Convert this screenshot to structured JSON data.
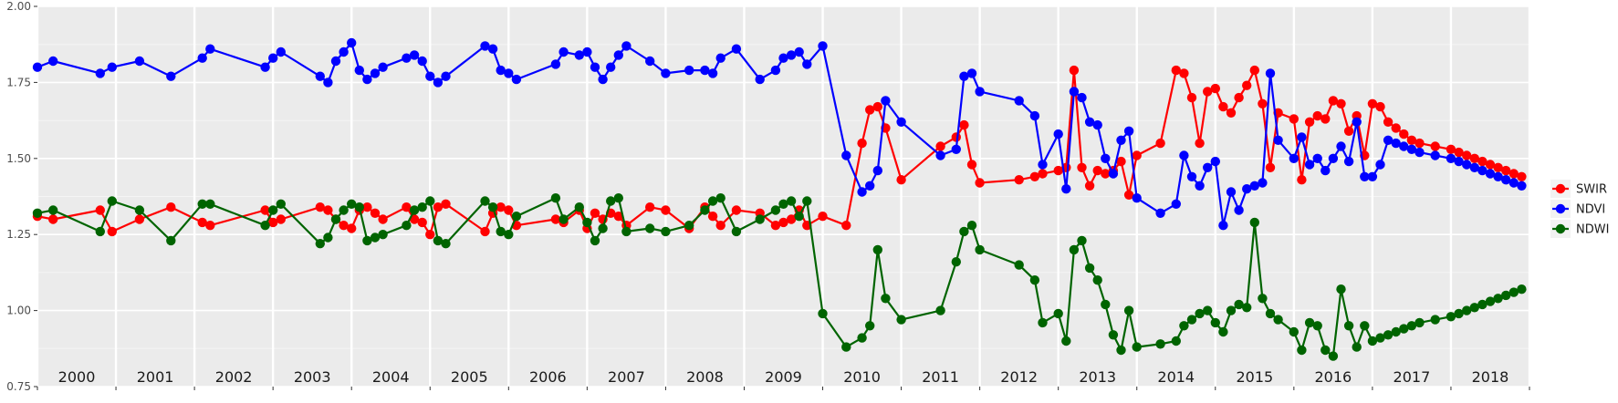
{
  "chart_data": {
    "type": "line",
    "title": "",
    "xlabel": "",
    "ylabel": "",
    "ylim": [
      0.75,
      2.0
    ],
    "y_ticks": [
      "0.75",
      "1.00",
      "1.25",
      "1.50",
      "1.75",
      "2.00"
    ],
    "xlim": [
      2000.0,
      2019.0
    ],
    "year_labels": [
      "2000",
      "2001",
      "2002",
      "2003",
      "2004",
      "2005",
      "2006",
      "2007",
      "2008",
      "2009",
      "2010",
      "2011",
      "2012",
      "2013",
      "2014",
      "2015",
      "2016",
      "2017",
      "2018"
    ],
    "grid": true,
    "legend_position": "right",
    "series": [
      {
        "name": "SWIR",
        "color": "#ff0000",
        "x": [
          2000.0,
          2000.2,
          2000.8,
          2000.95,
          2001.3,
          2001.7,
          2002.1,
          2002.2,
          2002.9,
          2003.0,
          2003.1,
          2003.6,
          2003.7,
          2003.8,
          2003.9,
          2004.0,
          2004.1,
          2004.2,
          2004.3,
          2004.4,
          2004.7,
          2004.8,
          2004.9,
          2005.0,
          2005.1,
          2005.2,
          2005.7,
          2005.8,
          2005.9,
          2006.0,
          2006.1,
          2006.6,
          2006.7,
          2006.9,
          2007.0,
          2007.1,
          2007.2,
          2007.3,
          2007.4,
          2007.5,
          2007.8,
          2008.0,
          2008.3,
          2008.5,
          2008.6,
          2008.7,
          2008.9,
          2009.2,
          2009.4,
          2009.5,
          2009.6,
          2009.7,
          2009.8,
          2010.0,
          2010.3,
          2010.5,
          2010.6,
          2010.7,
          2010.8,
          2011.0,
          2011.5,
          2011.7,
          2011.8,
          2011.9,
          2012.0,
          2012.5,
          2012.7,
          2012.8,
          2013.0,
          2013.1,
          2013.2,
          2013.3,
          2013.4,
          2013.5,
          2013.6,
          2013.7,
          2013.8,
          2013.9,
          2014.0,
          2014.3,
          2014.5,
          2014.6,
          2014.7,
          2014.8,
          2014.9,
          2015.0,
          2015.1,
          2015.2,
          2015.3,
          2015.4,
          2015.5,
          2015.6,
          2015.7,
          2015.8,
          2016.0,
          2016.1,
          2016.2,
          2016.3,
          2016.4,
          2016.5,
          2016.6,
          2016.7,
          2016.8,
          2016.9,
          2017.0,
          2017.1,
          2017.2,
          2017.3,
          2017.4,
          2017.5,
          2017.6,
          2017.8,
          2018.0,
          2018.1,
          2018.2,
          2018.3,
          2018.4,
          2018.5,
          2018.6,
          2018.7,
          2018.8,
          2018.9
        ],
        "values": [
          1.31,
          1.3,
          1.33,
          1.26,
          1.3,
          1.34,
          1.29,
          1.28,
          1.33,
          1.29,
          1.3,
          1.34,
          1.33,
          1.3,
          1.28,
          1.27,
          1.33,
          1.34,
          1.32,
          1.3,
          1.34,
          1.3,
          1.29,
          1.25,
          1.34,
          1.35,
          1.26,
          1.32,
          1.34,
          1.33,
          1.28,
          1.3,
          1.29,
          1.33,
          1.27,
          1.32,
          1.3,
          1.32,
          1.31,
          1.28,
          1.34,
          1.33,
          1.27,
          1.34,
          1.31,
          1.28,
          1.33,
          1.32,
          1.28,
          1.29,
          1.3,
          1.33,
          1.28,
          1.31,
          1.28,
          1.55,
          1.66,
          1.67,
          1.6,
          1.43,
          1.54,
          1.57,
          1.61,
          1.48,
          1.42,
          1.43,
          1.44,
          1.45,
          1.46,
          1.47,
          1.79,
          1.47,
          1.41,
          1.46,
          1.45,
          1.46,
          1.49,
          1.38,
          1.51,
          1.55,
          1.79,
          1.78,
          1.7,
          1.55,
          1.72,
          1.73,
          1.67,
          1.65,
          1.7,
          1.74,
          1.79,
          1.68,
          1.47,
          1.65,
          1.63,
          1.43,
          1.62,
          1.64,
          1.63,
          1.69,
          1.68,
          1.59,
          1.64,
          1.51,
          1.68,
          1.67,
          1.62,
          1.6,
          1.58,
          1.56,
          1.55,
          1.54,
          1.53,
          1.52,
          1.51,
          1.5,
          1.49,
          1.48,
          1.47,
          1.46,
          1.45,
          1.44
        ],
        "_note": ""
      },
      {
        "name": "NDVI",
        "color": "#0000ff",
        "x": [
          2000.0,
          2000.2,
          2000.8,
          2000.95,
          2001.3,
          2001.7,
          2002.1,
          2002.2,
          2002.9,
          2003.0,
          2003.1,
          2003.6,
          2003.7,
          2003.8,
          2003.9,
          2004.0,
          2004.1,
          2004.2,
          2004.3,
          2004.4,
          2004.7,
          2004.8,
          2004.9,
          2005.0,
          2005.1,
          2005.2,
          2005.7,
          2005.8,
          2005.9,
          2006.0,
          2006.1,
          2006.6,
          2006.7,
          2006.9,
          2007.0,
          2007.1,
          2007.2,
          2007.3,
          2007.4,
          2007.5,
          2007.8,
          2008.0,
          2008.3,
          2008.5,
          2008.6,
          2008.7,
          2008.9,
          2009.2,
          2009.4,
          2009.5,
          2009.6,
          2009.7,
          2009.8,
          2010.0,
          2010.3,
          2010.5,
          2010.6,
          2010.7,
          2010.8,
          2011.0,
          2011.5,
          2011.7,
          2011.8,
          2011.9,
          2012.0,
          2012.5,
          2012.7,
          2012.8,
          2013.0,
          2013.1,
          2013.2,
          2013.3,
          2013.4,
          2013.5,
          2013.6,
          2013.7,
          2013.8,
          2013.9,
          2014.0,
          2014.3,
          2014.5,
          2014.6,
          2014.7,
          2014.8,
          2014.9,
          2015.0,
          2015.1,
          2015.2,
          2015.3,
          2015.4,
          2015.5,
          2015.6,
          2015.7,
          2015.8,
          2016.0,
          2016.1,
          2016.2,
          2016.3,
          2016.4,
          2016.5,
          2016.6,
          2016.7,
          2016.8,
          2016.9,
          2017.0,
          2017.1,
          2017.2,
          2017.3,
          2017.4,
          2017.5,
          2017.6,
          2017.8,
          2018.0,
          2018.1,
          2018.2,
          2018.3,
          2018.4,
          2018.5,
          2018.6,
          2018.7,
          2018.8,
          2018.9
        ],
        "values": [
          1.8,
          1.82,
          1.78,
          1.8,
          1.82,
          1.77,
          1.83,
          1.86,
          1.8,
          1.83,
          1.85,
          1.77,
          1.75,
          1.82,
          1.85,
          1.88,
          1.79,
          1.76,
          1.78,
          1.8,
          1.83,
          1.84,
          1.82,
          1.77,
          1.75,
          1.77,
          1.87,
          1.86,
          1.79,
          1.78,
          1.76,
          1.81,
          1.85,
          1.84,
          1.85,
          1.8,
          1.76,
          1.8,
          1.84,
          1.87,
          1.82,
          1.78,
          1.79,
          1.79,
          1.78,
          1.83,
          1.86,
          1.76,
          1.79,
          1.83,
          1.84,
          1.85,
          1.81,
          1.87,
          1.51,
          1.39,
          1.41,
          1.46,
          1.69,
          1.62,
          1.51,
          1.53,
          1.77,
          1.78,
          1.72,
          1.69,
          1.64,
          1.48,
          1.58,
          1.4,
          1.72,
          1.7,
          1.62,
          1.61,
          1.5,
          1.45,
          1.56,
          1.59,
          1.37,
          1.32,
          1.35,
          1.51,
          1.44,
          1.41,
          1.47,
          1.49,
          1.28,
          1.39,
          1.33,
          1.4,
          1.41,
          1.42,
          1.78,
          1.56,
          1.5,
          1.57,
          1.48,
          1.5,
          1.46,
          1.5,
          1.54,
          1.49,
          1.62,
          1.44,
          1.44,
          1.48,
          1.56,
          1.55,
          1.54,
          1.53,
          1.52,
          1.51,
          1.5,
          1.49,
          1.48,
          1.47,
          1.46,
          1.45,
          1.44,
          1.43,
          1.42,
          1.41
        ],
        "_note": ""
      },
      {
        "name": "NDWI",
        "color": "#006400",
        "x": [
          2000.0,
          2000.2,
          2000.8,
          2000.95,
          2001.3,
          2001.7,
          2002.1,
          2002.2,
          2002.9,
          2003.0,
          2003.1,
          2003.6,
          2003.7,
          2003.8,
          2003.9,
          2004.0,
          2004.1,
          2004.2,
          2004.3,
          2004.4,
          2004.7,
          2004.8,
          2004.9,
          2005.0,
          2005.1,
          2005.2,
          2005.7,
          2005.8,
          2005.9,
          2006.0,
          2006.1,
          2006.6,
          2006.7,
          2006.9,
          2007.0,
          2007.1,
          2007.2,
          2007.3,
          2007.4,
          2007.5,
          2007.8,
          2008.0,
          2008.3,
          2008.5,
          2008.6,
          2008.7,
          2008.9,
          2009.2,
          2009.4,
          2009.5,
          2009.6,
          2009.7,
          2009.8,
          2010.0,
          2010.3,
          2010.5,
          2010.6,
          2010.7,
          2010.8,
          2011.0,
          2011.5,
          2011.7,
          2011.8,
          2011.9,
          2012.0,
          2012.5,
          2012.7,
          2012.8,
          2013.0,
          2013.1,
          2013.2,
          2013.3,
          2013.4,
          2013.5,
          2013.6,
          2013.7,
          2013.8,
          2013.9,
          2014.0,
          2014.3,
          2014.5,
          2014.6,
          2014.7,
          2014.8,
          2014.9,
          2015.0,
          2015.1,
          2015.2,
          2015.3,
          2015.4,
          2015.5,
          2015.6,
          2015.7,
          2015.8,
          2016.0,
          2016.1,
          2016.2,
          2016.3,
          2016.4,
          2016.5,
          2016.6,
          2016.7,
          2016.8,
          2016.9,
          2017.0,
          2017.1,
          2017.2,
          2017.3,
          2017.4,
          2017.5,
          2017.6,
          2017.8,
          2018.0,
          2018.1,
          2018.2,
          2018.3,
          2018.4,
          2018.5,
          2018.6,
          2018.7,
          2018.8,
          2018.9
        ],
        "values": [
          1.32,
          1.33,
          1.26,
          1.36,
          1.33,
          1.23,
          1.35,
          1.35,
          1.28,
          1.33,
          1.35,
          1.22,
          1.24,
          1.3,
          1.33,
          1.35,
          1.34,
          1.23,
          1.24,
          1.25,
          1.28,
          1.33,
          1.34,
          1.36,
          1.23,
          1.22,
          1.36,
          1.34,
          1.26,
          1.25,
          1.31,
          1.37,
          1.3,
          1.34,
          1.29,
          1.23,
          1.27,
          1.36,
          1.37,
          1.26,
          1.27,
          1.26,
          1.28,
          1.33,
          1.36,
          1.37,
          1.26,
          1.3,
          1.33,
          1.35,
          1.36,
          1.31,
          1.36,
          0.99,
          0.88,
          0.91,
          0.95,
          1.2,
          1.04,
          0.97,
          1.0,
          1.16,
          1.26,
          1.28,
          1.2,
          1.15,
          1.1,
          0.96,
          0.99,
          0.9,
          1.2,
          1.23,
          1.14,
          1.1,
          1.02,
          0.92,
          0.87,
          1.0,
          0.88,
          0.89,
          0.9,
          0.95,
          0.97,
          0.99,
          1.0,
          0.96,
          0.93,
          1.0,
          1.02,
          1.01,
          1.29,
          1.04,
          0.99,
          0.97,
          0.93,
          0.87,
          0.96,
          0.95,
          0.87,
          0.85,
          1.07,
          0.95,
          0.88,
          0.95,
          0.9,
          0.91,
          0.92,
          0.93,
          0.94,
          0.95,
          0.96,
          0.97,
          0.98,
          0.99,
          1.0,
          1.01,
          1.02,
          1.03,
          1.04,
          1.05,
          1.06,
          1.07
        ],
        "_note": ""
      }
    ]
  }
}
